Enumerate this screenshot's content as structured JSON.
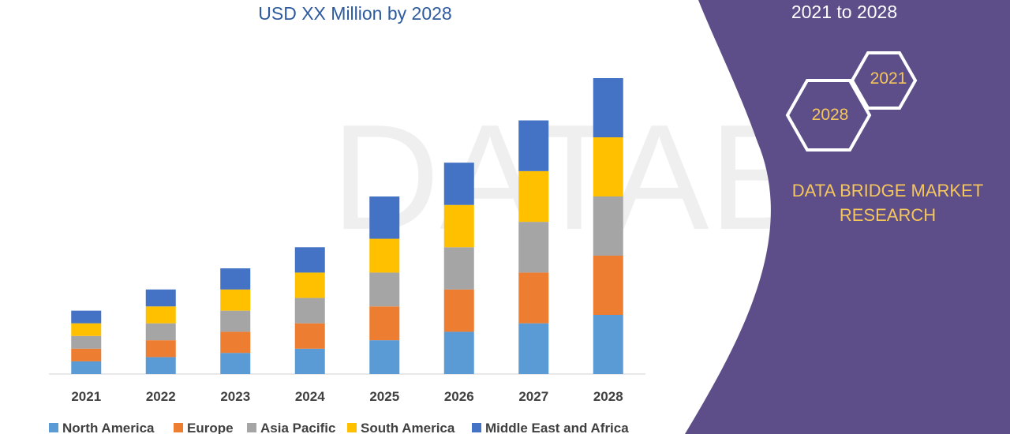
{
  "title": "USD XX Million by 2028",
  "side_panel": {
    "period": "2021 to 2028",
    "hex_start": "2021",
    "hex_end": "2028",
    "brand": "DATA BRIDGE MARKET RESEARCH",
    "background_color": "#5d4e89",
    "accent_color": "#f5c65b"
  },
  "chart_data": {
    "type": "bar",
    "stacked": true,
    "title": "USD XX Million by 2028",
    "categories": [
      "2021",
      "2022",
      "2023",
      "2024",
      "2025",
      "2026",
      "2027",
      "2028"
    ],
    "series": [
      {
        "name": "North America",
        "color": "#5b9bd5",
        "values": [
          1.5,
          2.0,
          2.5,
          3.0,
          4.0,
          5.0,
          6.0,
          7.0
        ]
      },
      {
        "name": "Europe",
        "color": "#ed7d31",
        "values": [
          1.5,
          2.0,
          2.5,
          3.0,
          4.0,
          5.0,
          6.0,
          7.0
        ]
      },
      {
        "name": "Asia Pacific",
        "color": "#a5a5a5",
        "values": [
          1.5,
          2.0,
          2.5,
          3.0,
          4.0,
          5.0,
          6.0,
          7.0
        ]
      },
      {
        "name": "South America",
        "color": "#ffc000",
        "values": [
          1.5,
          2.0,
          2.5,
          3.0,
          4.0,
          5.0,
          6.0,
          7.0
        ]
      },
      {
        "name": "Middle East and Africa",
        "color": "#4472c4",
        "values": [
          1.5,
          2.0,
          2.5,
          3.0,
          5.0,
          5.0,
          6.0,
          7.0
        ]
      }
    ],
    "ylim": [
      0,
      35
    ],
    "legend_position": "bottom",
    "grid": false
  }
}
